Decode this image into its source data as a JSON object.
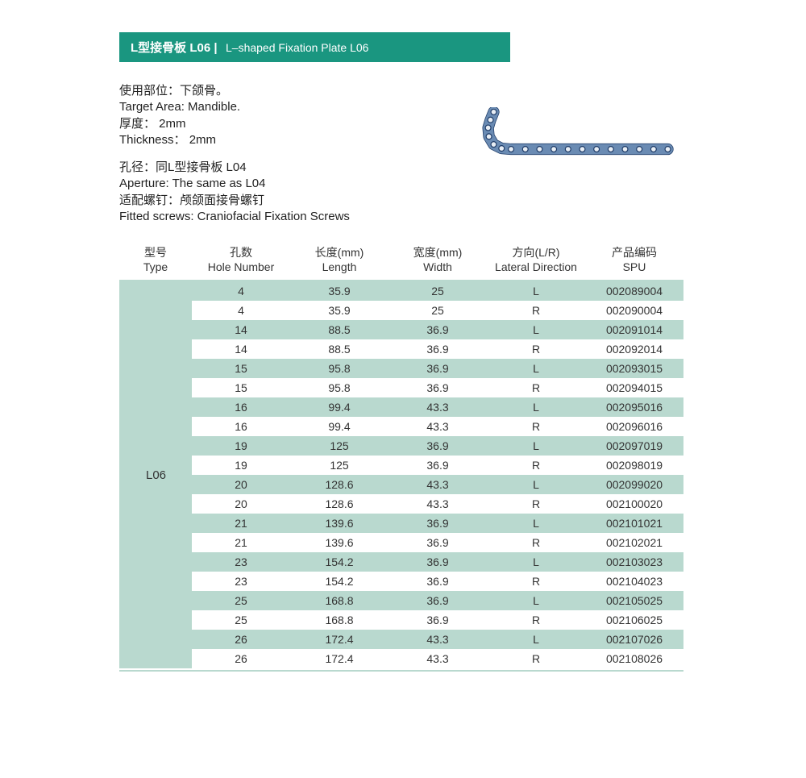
{
  "colors": {
    "brand": "#1a9680",
    "stripe": "#b9d9cf",
    "text": "#333333",
    "plate_fill": "#6a8bb3",
    "plate_stroke": "#1d3a66",
    "background": "#ffffff"
  },
  "header": {
    "title_bold": "L型接骨板 L06 |",
    "title_light": "L–shaped Fixation Plate L06"
  },
  "info": {
    "line1": "使用部位：下颌骨。",
    "line2": "Target Area: Mandible.",
    "line3": "厚度： 2mm",
    "line4": "Thickness： 2mm",
    "line5": "孔径：同L型接骨板 L04",
    "line6": "Aperture: The same as L04",
    "line7": "适配螺钉：颅颌面接骨螺钉",
    "line8": "Fitted screws: Craniofacial Fixation Screws"
  },
  "plate_diagram": {
    "hole_count": 15,
    "hole_radius": 3.5,
    "fill": "#6a8bb3",
    "stroke": "#1d3a66",
    "stroke_width": 1.2
  },
  "table": {
    "columns": [
      {
        "l1": "型号",
        "l2": "Type"
      },
      {
        "l1": "孔数",
        "l2": "Hole Number"
      },
      {
        "l1": "长度",
        "unit": "(mm)",
        "l2": "Length"
      },
      {
        "l1": "宽度",
        "unit": "(mm)",
        "l2": "Width"
      },
      {
        "l1": "方向",
        "unit": "(L/R)",
        "l2": "Lateral Direction"
      },
      {
        "l1": "产品编码",
        "l2": "SPU"
      }
    ],
    "type_label": "L06",
    "rows": [
      {
        "holes": "4",
        "length": "35.9",
        "width": "25",
        "dir": "L",
        "spu": "002089004"
      },
      {
        "holes": "4",
        "length": "35.9",
        "width": "25",
        "dir": "R",
        "spu": "002090004"
      },
      {
        "holes": "14",
        "length": "88.5",
        "width": "36.9",
        "dir": "L",
        "spu": "002091014"
      },
      {
        "holes": "14",
        "length": "88.5",
        "width": "36.9",
        "dir": "R",
        "spu": "002092014"
      },
      {
        "holes": "15",
        "length": "95.8",
        "width": "36.9",
        "dir": "L",
        "spu": "002093015"
      },
      {
        "holes": "15",
        "length": "95.8",
        "width": "36.9",
        "dir": "R",
        "spu": "002094015"
      },
      {
        "holes": "16",
        "length": "99.4",
        "width": "43.3",
        "dir": "L",
        "spu": "002095016"
      },
      {
        "holes": "16",
        "length": "99.4",
        "width": "43.3",
        "dir": "R",
        "spu": "002096016"
      },
      {
        "holes": "19",
        "length": "125",
        "width": "36.9",
        "dir": "L",
        "spu": "002097019"
      },
      {
        "holes": "19",
        "length": "125",
        "width": "36.9",
        "dir": "R",
        "spu": "002098019"
      },
      {
        "holes": "20",
        "length": "128.6",
        "width": "43.3",
        "dir": "L",
        "spu": "002099020"
      },
      {
        "holes": "20",
        "length": "128.6",
        "width": "43.3",
        "dir": "R",
        "spu": "002100020"
      },
      {
        "holes": "21",
        "length": "139.6",
        "width": "36.9",
        "dir": "L",
        "spu": "002101021"
      },
      {
        "holes": "21",
        "length": "139.6",
        "width": "36.9",
        "dir": "R",
        "spu": "002102021"
      },
      {
        "holes": "23",
        "length": "154.2",
        "width": "36.9",
        "dir": "L",
        "spu": "002103023"
      },
      {
        "holes": "23",
        "length": "154.2",
        "width": "36.9",
        "dir": "R",
        "spu": "002104023"
      },
      {
        "holes": "25",
        "length": "168.8",
        "width": "36.9",
        "dir": "L",
        "spu": "002105025"
      },
      {
        "holes": "25",
        "length": "168.8",
        "width": "36.9",
        "dir": "R",
        "spu": "002106025"
      },
      {
        "holes": "26",
        "length": "172.4",
        "width": "43.3",
        "dir": "L",
        "spu": "002107026"
      },
      {
        "holes": "26",
        "length": "172.4",
        "width": "43.3",
        "dir": "R",
        "spu": "002108026"
      }
    ]
  }
}
